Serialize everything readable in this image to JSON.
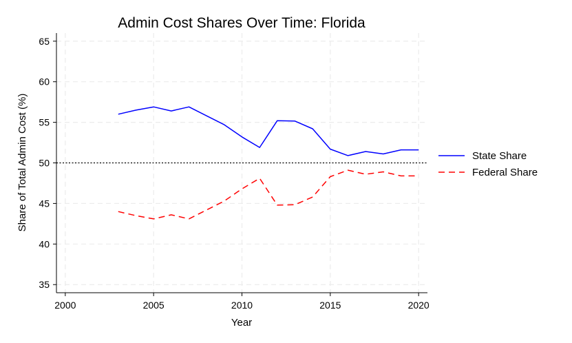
{
  "chart_data": {
    "type": "line",
    "title": "Admin Cost Shares Over Time: Florida",
    "xlabel": "Year",
    "ylabel": "Share of Total Admin Cost (%)",
    "xlim": [
      1999.5,
      2020.5
    ],
    "ylim": [
      34,
      66
    ],
    "xticks": [
      2000,
      2005,
      2010,
      2015,
      2020
    ],
    "yticks": [
      35,
      40,
      45,
      50,
      55,
      60,
      65
    ],
    "grid": true,
    "legend_position": "right",
    "reference_line": {
      "y": 50,
      "style": "dotted",
      "color": "#000000"
    },
    "x": [
      2003,
      2004,
      2005,
      2006,
      2007,
      2008,
      2009,
      2010,
      2011,
      2012,
      2013,
      2014,
      2015,
      2016,
      2017,
      2018,
      2019,
      2020
    ],
    "series": [
      {
        "name": "State Share",
        "color": "#0000ff",
        "style": "solid",
        "values": [
          56.0,
          56.5,
          56.9,
          56.4,
          56.9,
          55.8,
          54.7,
          53.2,
          51.9,
          55.2,
          55.15,
          54.2,
          51.7,
          50.9,
          51.4,
          51.1,
          51.6,
          51.6
        ]
      },
      {
        "name": "Federal Share",
        "color": "#ff0000",
        "style": "dashed",
        "values": [
          44.0,
          43.5,
          43.1,
          43.6,
          43.1,
          44.2,
          45.3,
          46.8,
          48.1,
          44.8,
          44.85,
          45.8,
          48.3,
          49.1,
          48.6,
          48.9,
          48.4,
          48.4
        ]
      }
    ]
  }
}
